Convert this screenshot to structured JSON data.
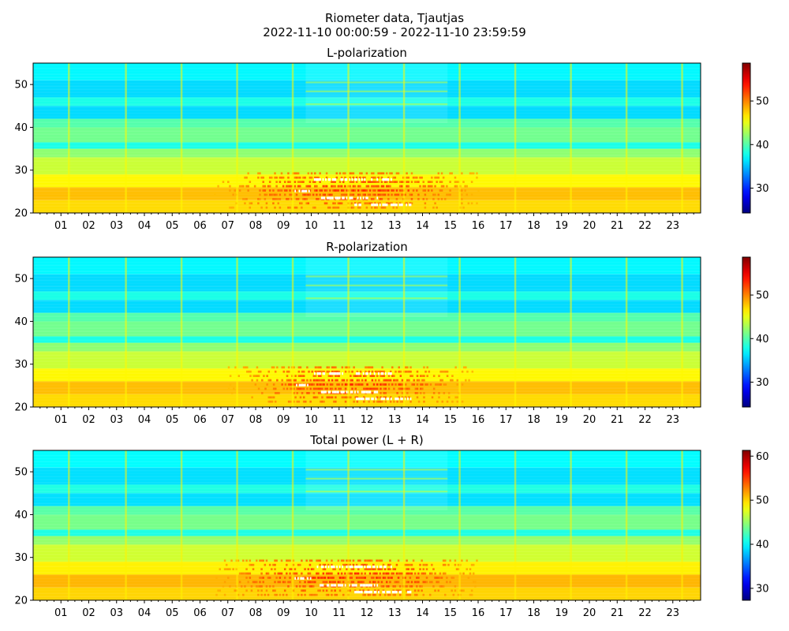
{
  "figure": {
    "title_line1": "Riometer data, Tjautjas",
    "title_line2": "2022-11-10 00:00:59 - 2022-11-10 23:59:59"
  },
  "chart_data": [
    {
      "type": "heatmap",
      "title": "L-polarization",
      "x_tick_labels": [
        "01",
        "02",
        "03",
        "04",
        "05",
        "06",
        "07",
        "08",
        "09",
        "10",
        "11",
        "12",
        "13",
        "14",
        "15",
        "16",
        "17",
        "18",
        "19",
        "20",
        "21",
        "22",
        "23"
      ],
      "x_range_hours": [
        0,
        24
      ],
      "ylim": [
        20,
        55
      ],
      "y_ticks": [
        20,
        30,
        40,
        50
      ],
      "colorbar": {
        "range": [
          24.3,
          58.7
        ],
        "ticks": [
          30,
          40,
          50
        ],
        "colormap": "jet"
      },
      "band_levels": [
        {
          "y": [
            20,
            23
          ],
          "value": 47
        },
        {
          "y": [
            23,
            26
          ],
          "value": 48
        },
        {
          "y": [
            26,
            29
          ],
          "value": 46
        },
        {
          "y": [
            29,
            33
          ],
          "value": 44
        },
        {
          "y": [
            33,
            35
          ],
          "value": 42
        },
        {
          "y": [
            35,
            36.5
          ],
          "value": 38
        },
        {
          "y": [
            36.5,
            40
          ],
          "value": 41
        },
        {
          "y": [
            40,
            42
          ],
          "value": 40
        },
        {
          "y": [
            42,
            45
          ],
          "value": 36
        },
        {
          "y": [
            45,
            47
          ],
          "value": 38
        },
        {
          "y": [
            47,
            51
          ],
          "value": 36
        },
        {
          "y": [
            51,
            55
          ],
          "value": 37
        }
      ],
      "enhancement": {
        "hours": [
          6.5,
          16.0
        ],
        "y": [
          20,
          30
        ],
        "peak_value": 53
      }
    },
    {
      "type": "heatmap",
      "title": "R-polarization",
      "x_tick_labels": [
        "01",
        "02",
        "03",
        "04",
        "05",
        "06",
        "07",
        "08",
        "09",
        "10",
        "11",
        "12",
        "13",
        "14",
        "15",
        "16",
        "17",
        "18",
        "19",
        "20",
        "21",
        "22",
        "23"
      ],
      "x_range_hours": [
        0,
        24
      ],
      "ylim": [
        20,
        55
      ],
      "y_ticks": [
        20,
        30,
        40,
        50
      ],
      "colorbar": {
        "range": [
          24.3,
          58.7
        ],
        "ticks": [
          30,
          40,
          50
        ],
        "colormap": "jet"
      },
      "band_levels": [
        {
          "y": [
            20,
            23
          ],
          "value": 47
        },
        {
          "y": [
            23,
            26
          ],
          "value": 48
        },
        {
          "y": [
            26,
            29
          ],
          "value": 46
        },
        {
          "y": [
            29,
            33
          ],
          "value": 44
        },
        {
          "y": [
            33,
            35
          ],
          "value": 42
        },
        {
          "y": [
            35,
            36.5
          ],
          "value": 38
        },
        {
          "y": [
            36.5,
            40
          ],
          "value": 41
        },
        {
          "y": [
            40,
            42
          ],
          "value": 40
        },
        {
          "y": [
            42,
            45
          ],
          "value": 36
        },
        {
          "y": [
            45,
            47
          ],
          "value": 38
        },
        {
          "y": [
            47,
            51
          ],
          "value": 36
        },
        {
          "y": [
            51,
            55
          ],
          "value": 37
        }
      ],
      "enhancement": {
        "hours": [
          7.0,
          15.8
        ],
        "y": [
          20,
          30
        ],
        "peak_value": 53
      }
    },
    {
      "type": "heatmap",
      "title": "Total power (L + R)",
      "x_tick_labels": [
        "01",
        "02",
        "03",
        "04",
        "05",
        "06",
        "07",
        "08",
        "09",
        "10",
        "11",
        "12",
        "13",
        "14",
        "15",
        "16",
        "17",
        "18",
        "19",
        "20",
        "21",
        "22",
        "23"
      ],
      "x_range_hours": [
        0,
        24
      ],
      "ylim": [
        20,
        55
      ],
      "y_ticks": [
        20,
        30,
        40,
        50
      ],
      "colorbar": {
        "range": [
          27.3,
          61.3
        ],
        "ticks": [
          30,
          40,
          50,
          60
        ],
        "colormap": "jet"
      },
      "band_levels": [
        {
          "y": [
            20,
            23
          ],
          "value": 50
        },
        {
          "y": [
            23,
            26
          ],
          "value": 51
        },
        {
          "y": [
            26,
            29
          ],
          "value": 49
        },
        {
          "y": [
            29,
            33
          ],
          "value": 47
        },
        {
          "y": [
            33,
            35
          ],
          "value": 45
        },
        {
          "y": [
            35,
            36.5
          ],
          "value": 41
        },
        {
          "y": [
            36.5,
            40
          ],
          "value": 44
        },
        {
          "y": [
            40,
            42
          ],
          "value": 43
        },
        {
          "y": [
            42,
            45
          ],
          "value": 39
        },
        {
          "y": [
            45,
            47
          ],
          "value": 41
        },
        {
          "y": [
            47,
            51
          ],
          "value": 39
        },
        {
          "y": [
            51,
            55
          ],
          "value": 40
        }
      ],
      "enhancement": {
        "hours": [
          6.5,
          16.0
        ],
        "y": [
          20,
          30
        ],
        "peak_value": 56
      }
    }
  ],
  "spike_hours": [
    1.25,
    3.3,
    5.3,
    7.3,
    9.3,
    11.3,
    13.3,
    15.3,
    17.3,
    19.3,
    21.3,
    23.3
  ]
}
